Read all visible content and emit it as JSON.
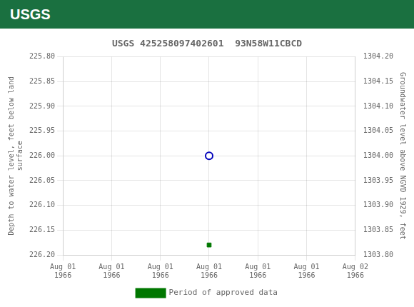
{
  "chart_data": {
    "type": "scatter",
    "title": "USGS 425258097402601  93N58W11CBCD",
    "annotations": [
      "USGS"
    ],
    "categories": [
      "Aug 01\n1966",
      "Aug 01\n1966",
      "Aug 01\n1966",
      "Aug 01\n1966",
      "Aug 01\n1966",
      "Aug 01\n1966",
      "Aug 02\n1966"
    ],
    "y_label": "Depth to water level, feet below land\nsurface",
    "y2_label": "Groundwater level above NGVD 1929, feet",
    "ylim": [
      226.2,
      225.8
    ],
    "yticks": [
      {
        "value": 225.8,
        "label": "225.80"
      },
      225.85,
      {
        "value": 225.9,
        "label": "225.90"
      },
      225.95,
      {
        "value": 226.0,
        "label": "226.00"
      },
      226.05,
      {
        "value": 226.1,
        "label": "226.10"
      },
      226.15,
      {
        "value": 226.2,
        "label": "226.20"
      }
    ],
    "y2lim": [
      1303.8,
      1304.2
    ],
    "y2ticks": [
      {
        "value": 1304.2,
        "label": "1304.20"
      },
      1304.15,
      {
        "value": 1304.1,
        "label": "1304.10"
      },
      1304.05,
      {
        "value": 1304.0,
        "label": "1304.00"
      },
      1303.95,
      {
        "value": 1303.9,
        "label": "1303.90"
      },
      1303.85,
      {
        "value": 1303.8,
        "label": "1303.80"
      }
    ],
    "grid": true,
    "legend": "bottom",
    "series": [
      {
        "color": "#0000bb",
        "marker": "circle_open",
        "values": [
          null,
          null,
          null,
          226.0,
          null,
          null,
          null
        ]
      },
      {
        "name": "Period of approved data",
        "color": "#007700",
        "marker": "square",
        "values": [
          null,
          null,
          null,
          226.18,
          null,
          null,
          null
        ]
      }
    ]
  }
}
